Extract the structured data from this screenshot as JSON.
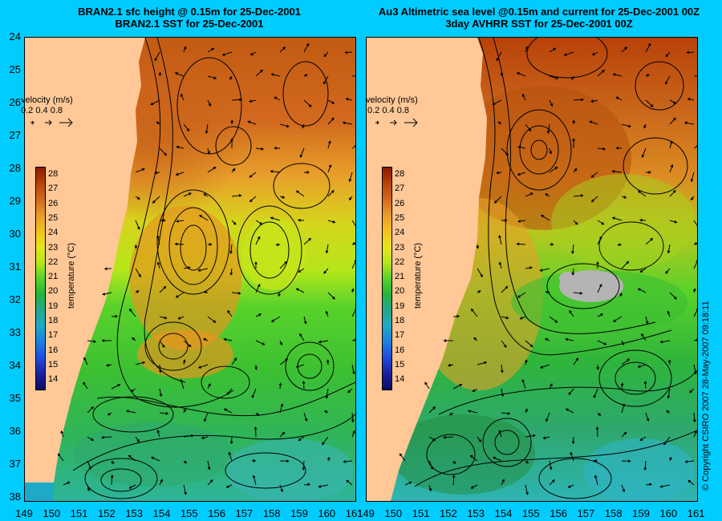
{
  "titles": {
    "left_line1": "BRAN2.1 sfc height @ 0.15m for 25-Dec-2001",
    "left_line2": "BRAN2.1 SST for 25-Dec-2001",
    "right_line1": "Au3 Altimetric sea level  @0.15m and current for 25-Dec-2001 00Z",
    "right_line2": "3day AVHRR SST for 25-Dec-2001 00Z"
  },
  "axes": {
    "lat_ticks": [
      "24",
      "25",
      "26",
      "27",
      "28",
      "29",
      "30",
      "31",
      "32",
      "33",
      "34",
      "35",
      "36",
      "37",
      "38"
    ],
    "lon_ticks": [
      "149",
      "150",
      "151",
      "152",
      "153",
      "154",
      "155",
      "156",
      "157",
      "158",
      "159",
      "160",
      "161"
    ]
  },
  "velocity_legend": {
    "title": "velocity  (m/s)",
    "values": "0.2 0.4 0.8"
  },
  "colorbar": {
    "labels": [
      "28",
      "27",
      "26",
      "25",
      "24",
      "23",
      "22",
      "21",
      "20",
      "19",
      "18",
      "17",
      "16",
      "15",
      "14"
    ],
    "unit": "temperature (°C)",
    "colors": [
      "#8b1a00",
      "#b8420a",
      "#d2691e",
      "#e89b2a",
      "#f2c21d",
      "#e6e619",
      "#b6e61a",
      "#59d22a",
      "#22b43c",
      "#25a88c",
      "#1ea9c9",
      "#1e7fe0",
      "#1f4be0",
      "#1a1f9e",
      "#0b0b64"
    ]
  },
  "copyright": "© Copyright CSIRO 2007   28-May-2007 09:18:11",
  "map": {
    "land_color": "#ffc896",
    "gap_color": "#b4b4b4"
  }
}
